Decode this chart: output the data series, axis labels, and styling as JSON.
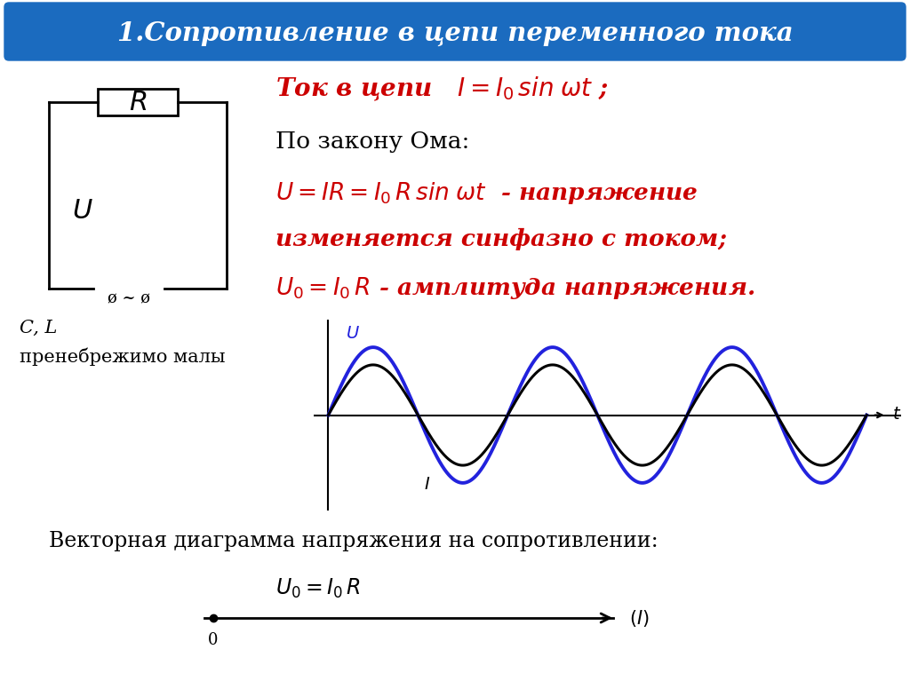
{
  "title": "1.Сопротивление в цепи переменного тока",
  "title_color": "#FFFFFF",
  "title_bg_color": "#1B6BBF",
  "bg_color": "#FFFFFF",
  "cl_text": "C, L",
  "neglect_text": "пренебрежимо малы",
  "vector_text": "Векторная диаграмма напряжения на сопротивлении:",
  "wave_color_blue": "#2222DD",
  "wave_color_black": "#000000",
  "red_color": "#CC0000",
  "black_color": "#000000"
}
